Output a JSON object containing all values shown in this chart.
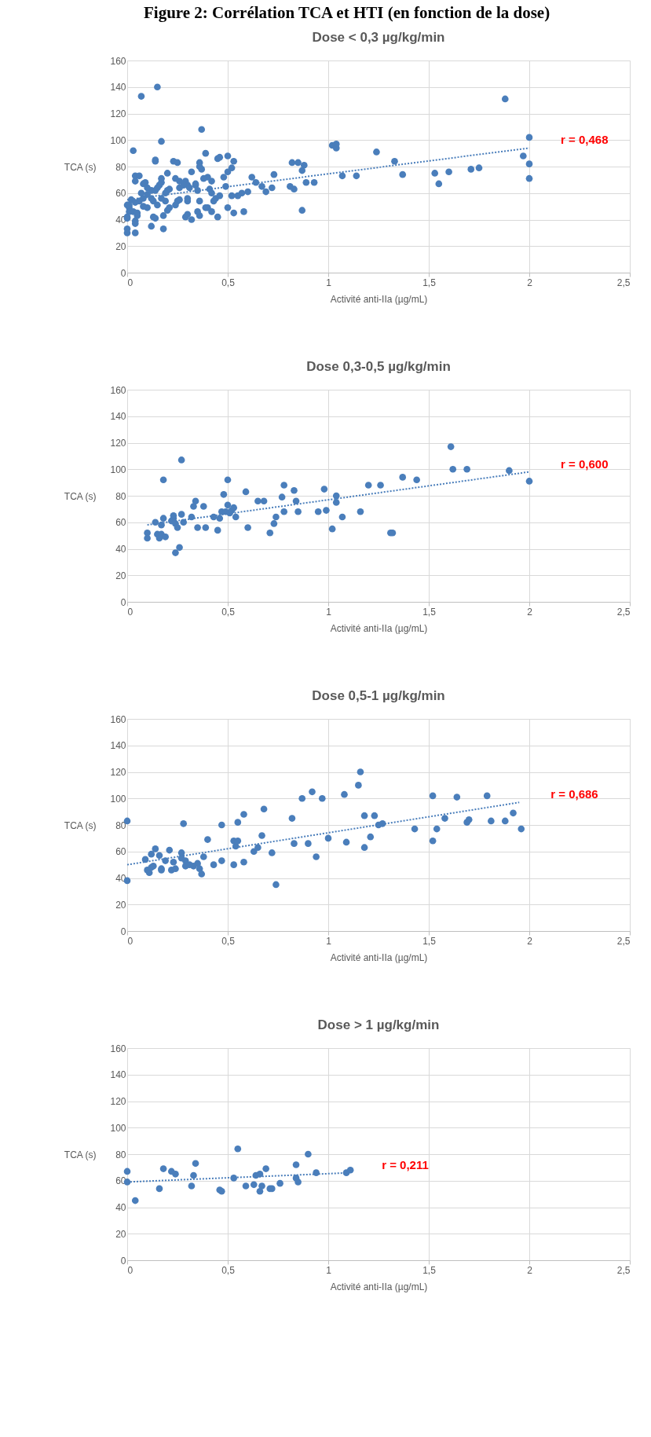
{
  "chart_data": [
    {
      "type": "scatter",
      "title": "Dose < 0,3 µg/kg/min",
      "xlabel": "Activité anti-IIa (µg/mL)",
      "ylabel": "TCA (s)",
      "grid": true,
      "annotations": [
        "Figure 2: Corrélation TCA et HTI (en fonction de la dose)",
        "r = 0,468"
      ],
      "xlim": [
        0,
        2.5
      ],
      "xticks": [
        0,
        {
          "value": 0.5,
          "label": "0,5"
        },
        1,
        {
          "value": 1.5,
          "label": "1,5"
        },
        2,
        {
          "value": 2.5,
          "label": "2,5"
        }
      ],
      "ylim": [
        0,
        160
      ],
      "yticks": [
        0,
        20,
        40,
        60,
        80,
        100,
        120,
        140,
        160
      ],
      "series": [
        {
          "marker": "circle",
          "color": "#4a7ebb",
          "x": [
            0.07,
            0.15,
            0.03,
            0.17,
            0.37,
            1.88,
            2.0,
            1.97,
            2.0,
            2.0,
            1.71,
            1.75,
            1.6,
            1.53,
            1.55,
            1.37,
            1.33,
            1.24,
            1.14,
            1.07,
            1.02,
            1.04,
            1.04,
            0.93,
            0.89,
            0.88,
            0.85,
            0.82,
            0.87,
            0.87,
            0.81,
            0.83,
            0.73,
            0.72,
            0.69,
            0.67,
            0.64,
            0.62,
            0.6,
            0.57,
            0.55,
            0.52,
            0.58,
            0.53,
            0.5,
            0.5,
            0.53,
            0.52,
            0.5,
            0.48,
            0.49,
            0.45,
            0.46,
            0.39,
            0.45,
            0.43,
            0.44,
            0.46,
            0.42,
            0.4,
            0.39,
            0.42,
            0.4,
            0.41,
            0.42,
            0.36,
            0.36,
            0.37,
            0.38,
            0.36,
            0.36,
            0.35,
            0.32,
            0.32,
            0.3,
            0.29,
            0.3,
            0.3,
            0.35,
            0.34,
            0.34,
            0.29,
            0.3,
            0.31,
            0.26,
            0.24,
            0.23,
            0.25,
            0.26,
            0.28,
            0.25,
            0.26,
            0.24,
            0.2,
            0.2,
            0.21,
            0.19,
            0.17,
            0.17,
            0.16,
            0.14,
            0.14,
            0.18,
            0.12,
            0.14,
            0.13,
            0.18,
            0.2,
            0.21,
            0.19,
            0.17,
            0.15,
            0.13,
            0.12,
            0.1,
            0.12,
            0.14,
            0.15,
            0.1,
            0.08,
            0.04,
            0.06,
            0.04,
            0.09,
            0.07,
            0.08,
            0.06,
            0.1,
            0.08,
            0.02,
            0.04,
            0.01,
            0.01,
            0.01,
            0,
            0.03,
            0.05,
            0.05,
            0.04,
            0.04,
            0.04,
            0,
            0,
            0,
            0
          ],
          "values": [
            133,
            140,
            92,
            99,
            108,
            131,
            102,
            88,
            82,
            71,
            78,
            79,
            76,
            75,
            67,
            74,
            84,
            91,
            73,
            73,
            96,
            97,
            94,
            68,
            68,
            81,
            83,
            83,
            77,
            47,
            65,
            63,
            74,
            64,
            61,
            65,
            68,
            72,
            61,
            60,
            58,
            58,
            46,
            45,
            49,
            88,
            84,
            79,
            76,
            72,
            65,
            86,
            87,
            90,
            42,
            54,
            56,
            58,
            46,
            49,
            49,
            69,
            72,
            63,
            60,
            83,
            80,
            78,
            71,
            54,
            43,
            46,
            76,
            40,
            44,
            42,
            54,
            56,
            62,
            66,
            67,
            69,
            66,
            64,
            69,
            71,
            84,
            83,
            64,
            66,
            54,
            55,
            51,
            75,
            62,
            63,
            60,
            71,
            68,
            66,
            84,
            85,
            33,
            35,
            41,
            42,
            43,
            47,
            49,
            54,
            56,
            51,
            54,
            56,
            59,
            62,
            62,
            64,
            64,
            67,
            73,
            73,
            69,
            68,
            60,
            56,
            54,
            49,
            50,
            55,
            53,
            51,
            49,
            46,
            42,
            46,
            45,
            43,
            39,
            37,
            30,
            30,
            33,
            41,
            51
          ]
        },
        {
          "type": "line",
          "color": "#4a7ebb",
          "line_style": "dotted",
          "x": [
            0,
            2
          ],
          "values": [
            55,
            94
          ]
        }
      ]
    },
    {
      "type": "scatter",
      "title": "Dose 0,3-0,5 µg/kg/min",
      "xlabel": "Activité anti-IIa (µg/mL)",
      "ylabel": "TCA (s)",
      "grid": true,
      "annotations": [
        "r = 0,600"
      ],
      "xlim": [
        0,
        2.5
      ],
      "xticks": [
        0,
        {
          "value": 0.5,
          "label": "0,5"
        },
        1,
        {
          "value": 1.5,
          "label": "1,5"
        },
        2,
        {
          "value": 2.5,
          "label": "2,5"
        }
      ],
      "ylim": [
        0,
        160
      ],
      "yticks": [
        0,
        20,
        40,
        60,
        80,
        100,
        120,
        140,
        160
      ],
      "series": [
        {
          "marker": "circle",
          "color": "#4a7ebb",
          "x": [
            0.1,
            0.1,
            0.14,
            0.15,
            0.16,
            0.17,
            0.19,
            0.17,
            0.18,
            0.18,
            0.22,
            0.23,
            0.23,
            0.24,
            0.24,
            0.25,
            0.26,
            0.27,
            0.27,
            0.28,
            0.32,
            0.33,
            0.34,
            0.35,
            0.38,
            0.39,
            0.43,
            0.45,
            0.46,
            0.47,
            0.48,
            0.5,
            0.5,
            0.49,
            0.51,
            0.52,
            0.53,
            0.54,
            0.59,
            0.6,
            0.65,
            0.68,
            0.71,
            0.73,
            0.74,
            0.77,
            0.78,
            0.78,
            0.83,
            0.84,
            0.85,
            0.95,
            0.98,
            0.99,
            1.02,
            1.04,
            1.04,
            1.07,
            1.16,
            1.2,
            1.26,
            1.31,
            1.32,
            1.37,
            1.44,
            1.61,
            1.62,
            1.69,
            1.9,
            2.0
          ],
          "values": [
            52,
            48,
            60,
            51,
            48,
            51,
            49,
            58,
            63,
            92,
            61,
            63,
            65,
            59,
            37,
            56,
            41,
            66,
            107,
            60,
            64,
            72,
            76,
            56,
            72,
            56,
            64,
            54,
            63,
            68,
            81,
            92,
            73,
            68,
            67,
            69,
            71,
            64,
            83,
            56,
            76,
            76,
            52,
            59,
            64,
            79,
            88,
            68,
            84,
            76,
            68,
            68,
            85,
            69,
            55,
            80,
            75,
            64,
            68,
            88,
            88,
            52,
            52,
            94,
            92,
            117,
            100,
            100,
            99,
            91
          ]
        },
        {
          "type": "line",
          "color": "#4a7ebb",
          "line_style": "dotted",
          "x": [
            0.1,
            2
          ],
          "values": [
            58,
            98
          ]
        }
      ]
    },
    {
      "type": "scatter",
      "title": "Dose 0,5-1 µg/kg/min",
      "xlabel": "Activité anti-IIa (µg/mL)",
      "ylabel": "TCA (s)",
      "grid": true,
      "annotations": [
        "r = 0,686"
      ],
      "xlim": [
        0,
        2.5
      ],
      "xticks": [
        0,
        {
          "value": 0.5,
          "label": "0,5"
        },
        1,
        {
          "value": 1.5,
          "label": "1,5"
        },
        2,
        {
          "value": 2.5,
          "label": "2,5"
        }
      ],
      "ylim": [
        0,
        160
      ],
      "yticks": [
        0,
        20,
        40,
        60,
        80,
        100,
        120,
        140,
        160
      ],
      "series": [
        {
          "marker": "circle",
          "color": "#4a7ebb",
          "x": [
            0,
            0,
            0.09,
            0.1,
            0.11,
            0.12,
            0.12,
            0.13,
            0.14,
            0.16,
            0.17,
            0.17,
            0.19,
            0.21,
            0.22,
            0.23,
            0.24,
            0.27,
            0.27,
            0.28,
            0.29,
            0.29,
            0.31,
            0.33,
            0.35,
            0.36,
            0.37,
            0.38,
            0.4,
            0.43,
            0.47,
            0.47,
            0.53,
            0.53,
            0.54,
            0.55,
            0.55,
            0.58,
            0.58,
            0.63,
            0.65,
            0.67,
            0.68,
            0.72,
            0.74,
            0.82,
            0.83,
            0.87,
            0.9,
            0.92,
            0.94,
            0.97,
            1.0,
            1.08,
            1.09,
            1.15,
            1.16,
            1.18,
            1.18,
            1.21,
            1.23,
            1.25,
            1.27,
            1.43,
            1.52,
            1.52,
            1.54,
            1.58,
            1.64,
            1.69,
            1.7,
            1.79,
            1.81,
            1.88,
            1.92,
            1.96
          ],
          "values": [
            83,
            38,
            54,
            46,
            44,
            58,
            48,
            49,
            62,
            57,
            47,
            46,
            53,
            61,
            46,
            52,
            47,
            59,
            55,
            81,
            49,
            53,
            50,
            49,
            51,
            47,
            43,
            56,
            69,
            50,
            80,
            53,
            50,
            68,
            64,
            82,
            68,
            88,
            52,
            60,
            63,
            72,
            92,
            59,
            35,
            85,
            66,
            100,
            66,
            105,
            56,
            100,
            70,
            103,
            67,
            110,
            120,
            87,
            63,
            71,
            87,
            80,
            81,
            77,
            68,
            102,
            77,
            85,
            101,
            82,
            84,
            102,
            83,
            83,
            89,
            77
          ]
        },
        {
          "type": "line",
          "color": "#4a7ebb",
          "line_style": "dotted",
          "x": [
            0,
            1.95
          ],
          "values": [
            50,
            97
          ]
        }
      ]
    },
    {
      "type": "scatter",
      "title": "Dose > 1 µg/kg/min",
      "xlabel": "Activité anti-IIa (µg/mL)",
      "ylabel": "TCA (s)",
      "grid": true,
      "annotations": [
        "r = 0,211"
      ],
      "xlim": [
        0,
        2.5
      ],
      "xticks": [
        0,
        {
          "value": 0.5,
          "label": "0,5"
        },
        1,
        {
          "value": 1.5,
          "label": "1,5"
        },
        2,
        {
          "value": 2.5,
          "label": "2,5"
        }
      ],
      "ylim": [
        0,
        160
      ],
      "yticks": [
        0,
        20,
        40,
        60,
        80,
        100,
        120,
        140,
        160
      ],
      "series": [
        {
          "marker": "circle",
          "color": "#4a7ebb",
          "x": [
            0,
            0,
            0.04,
            0.16,
            0.18,
            0.22,
            0.24,
            0.32,
            0.33,
            0.34,
            0.46,
            0.47,
            0.53,
            0.55,
            0.59,
            0.63,
            0.64,
            0.66,
            0.66,
            0.67,
            0.69,
            0.71,
            0.72,
            0.76,
            0.84,
            0.84,
            0.85,
            0.9,
            0.94,
            1.09,
            1.11
          ],
          "values": [
            67,
            59,
            45,
            54,
            69,
            67,
            65,
            56,
            64,
            73,
            53,
            52,
            62,
            84,
            56,
            57,
            64,
            65,
            52,
            56,
            69,
            54,
            54,
            58,
            72,
            62,
            59,
            80,
            66,
            66,
            68
          ]
        },
        {
          "type": "line",
          "color": "#4a7ebb",
          "line_style": "dotted",
          "x": [
            0,
            1.11
          ],
          "values": [
            59,
            66
          ]
        }
      ]
    }
  ]
}
